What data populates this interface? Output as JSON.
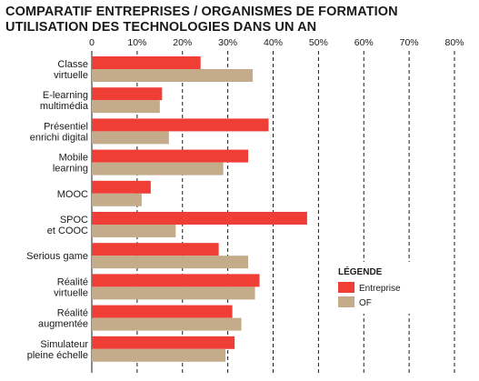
{
  "header": {
    "title_line1": "COMPARATIF ENTREPRISES / ORGANISMES DE FORMATION",
    "title_line2": "UTILISATION DES TECHNOLOGIES DANS UN AN"
  },
  "colors": {
    "entreprise": "#ef3e36",
    "of": "#c4ab8a",
    "grid": "#1a1a1a"
  },
  "chart_data": {
    "type": "bar",
    "orientation": "horizontal",
    "title": "COMPARATIF ENTREPRISES / ORGANISMES DE FORMATION UTILISATION DES TECHNOLOGIES DANS UN AN",
    "xlabel": "",
    "ylabel": "",
    "xlim": [
      0,
      80
    ],
    "xticks": [
      "0",
      "10%",
      "20%",
      "30%",
      "40%",
      "50%",
      "60%",
      "70%",
      "80%"
    ],
    "grid": "vertical dashed",
    "legend_title": "LÉGENDE",
    "legend_position": "right",
    "categories": [
      [
        "Classe",
        "virtuelle"
      ],
      [
        "E-learning",
        "multimédia"
      ],
      [
        "Présentiel",
        "enrichi digital"
      ],
      [
        "Mobile",
        "learning"
      ],
      [
        "MOOC"
      ],
      [
        "SPOC",
        "et COOC"
      ],
      [
        "Serious game"
      ],
      [
        "Réalité",
        "virtuelle"
      ],
      [
        "Réalité",
        "augmentée"
      ],
      [
        "Simulateur",
        "pleine échelle"
      ]
    ],
    "series": [
      {
        "name": "Entreprise",
        "values": [
          24,
          15.5,
          39,
          34.5,
          13,
          47.5,
          28,
          37,
          31,
          31.5
        ]
      },
      {
        "name": "OF",
        "values": [
          35.5,
          15,
          17,
          29,
          11,
          18.5,
          34.5,
          36,
          33,
          29.5
        ]
      }
    ]
  }
}
